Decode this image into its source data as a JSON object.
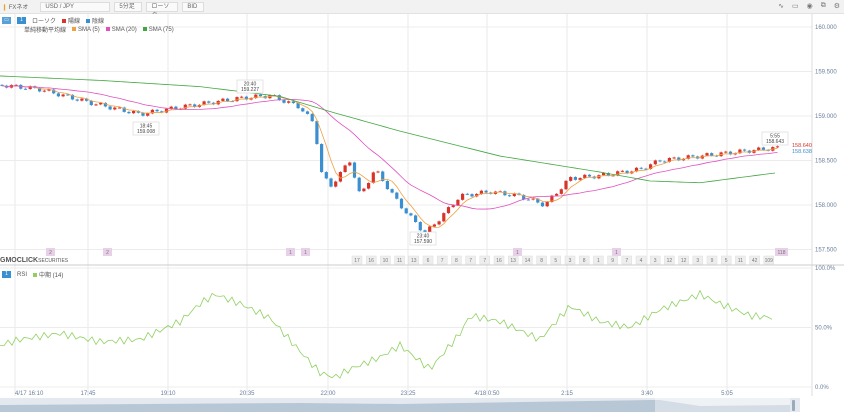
{
  "toolbar": {
    "brand": "FXネオ",
    "pair": "USD / JPY",
    "interval": "5分足",
    "chart_type": "ローソク",
    "price_type": "BID",
    "tools": [
      "line-tool",
      "image",
      "camera",
      "window",
      "settings"
    ]
  },
  "legend": {
    "candle": "ローソク",
    "up": "陽線",
    "down": "陰線",
    "ma_type": "単純移動平均線",
    "sma5": "SMA (5)",
    "sma20": "SMA (20)",
    "sma75": "SMA (75)"
  },
  "rsi_legend": {
    "name": "RSI",
    "mid": "中期 (14)"
  },
  "logo": {
    "main": "GMOCLICK",
    "sub": "SECURITIES"
  },
  "colors": {
    "up": "#d9342b",
    "down": "#3a8fd0",
    "sma5": "#f0a040",
    "sma20": "#e050c0",
    "sma75": "#40a840",
    "rsi": "#90d060"
  },
  "price_axis": [
    "160.000",
    "159.500",
    "159.000",
    "158.500",
    "158.000",
    "157.500"
  ],
  "rsi_axis": [
    "100.0%",
    "50.0%",
    "0.0%"
  ],
  "time_axis": [
    "4/17 16:10",
    "17:45",
    "19:10",
    "20:35",
    "22:00",
    "23:25",
    "4/18 0:50",
    "2:15",
    "3:40",
    "5:05"
  ],
  "annotations": [
    {
      "time": "18:45",
      "price": "159.008"
    },
    {
      "time": "20:40",
      "price": "159.227"
    },
    {
      "time": "23:40",
      "price": "157.590"
    },
    {
      "time": "5:55",
      "price": "158.643"
    }
  ],
  "current": {
    "ask": "158.640",
    "bid": "158.638"
  },
  "event_badges": [
    "2",
    "2",
    "1",
    "1",
    "1",
    "1",
    "118"
  ],
  "count_badges": [
    "17",
    "16",
    "10",
    "11",
    "13",
    "6",
    "7",
    "8",
    "7",
    "7",
    "16",
    "13",
    "14",
    "8",
    "5",
    "3",
    "8",
    "1",
    "9",
    "7",
    "4",
    "3",
    "12",
    "12",
    "3",
    "9",
    "5",
    "11",
    "42",
    "109"
  ],
  "chart_data": {
    "type": "candlestick",
    "ylim": [
      157.4,
      160.05
    ],
    "close_path": [
      [
        0,
        159.35
      ],
      [
        40,
        159.3
      ],
      [
        90,
        159.15
      ],
      [
        140,
        159.02
      ],
      [
        180,
        159.1
      ],
      [
        240,
        159.2
      ],
      [
        270,
        159.23
      ],
      [
        300,
        159.1
      ],
      [
        315,
        158.9
      ],
      [
        320,
        158.4
      ],
      [
        330,
        158.2
      ],
      [
        350,
        158.5
      ],
      [
        360,
        158.1
      ],
      [
        375,
        158.4
      ],
      [
        400,
        158.0
      ],
      [
        425,
        157.68
      ],
      [
        440,
        157.85
      ],
      [
        460,
        158.1
      ],
      [
        490,
        158.15
      ],
      [
        520,
        158.1
      ],
      [
        545,
        158.0
      ],
      [
        570,
        158.3
      ],
      [
        600,
        158.33
      ],
      [
        640,
        158.4
      ],
      [
        660,
        158.5
      ],
      [
        700,
        158.55
      ],
      [
        740,
        158.6
      ],
      [
        775,
        158.64
      ]
    ],
    "sma75_path": [
      [
        0,
        159.45
      ],
      [
        100,
        159.4
      ],
      [
        200,
        159.33
      ],
      [
        280,
        159.22
      ],
      [
        330,
        159.05
      ],
      [
        400,
        158.83
      ],
      [
        500,
        158.55
      ],
      [
        600,
        158.37
      ],
      [
        650,
        158.27
      ],
      [
        700,
        158.25
      ],
      [
        775,
        158.36
      ]
    ],
    "rsi_path": [
      [
        0,
        35
      ],
      [
        20,
        40
      ],
      [
        60,
        45
      ],
      [
        100,
        38
      ],
      [
        140,
        40
      ],
      [
        180,
        55
      ],
      [
        200,
        70
      ],
      [
        215,
        78
      ],
      [
        240,
        70
      ],
      [
        270,
        58
      ],
      [
        300,
        30
      ],
      [
        320,
        12
      ],
      [
        335,
        8
      ],
      [
        350,
        15
      ],
      [
        380,
        25
      ],
      [
        400,
        35
      ],
      [
        430,
        15
      ],
      [
        460,
        45
      ],
      [
        470,
        60
      ],
      [
        500,
        55
      ],
      [
        540,
        40
      ],
      [
        570,
        68
      ],
      [
        600,
        55
      ],
      [
        630,
        50
      ],
      [
        660,
        65
      ],
      [
        700,
        78
      ],
      [
        720,
        70
      ],
      [
        750,
        60
      ],
      [
        775,
        58
      ]
    ]
  }
}
